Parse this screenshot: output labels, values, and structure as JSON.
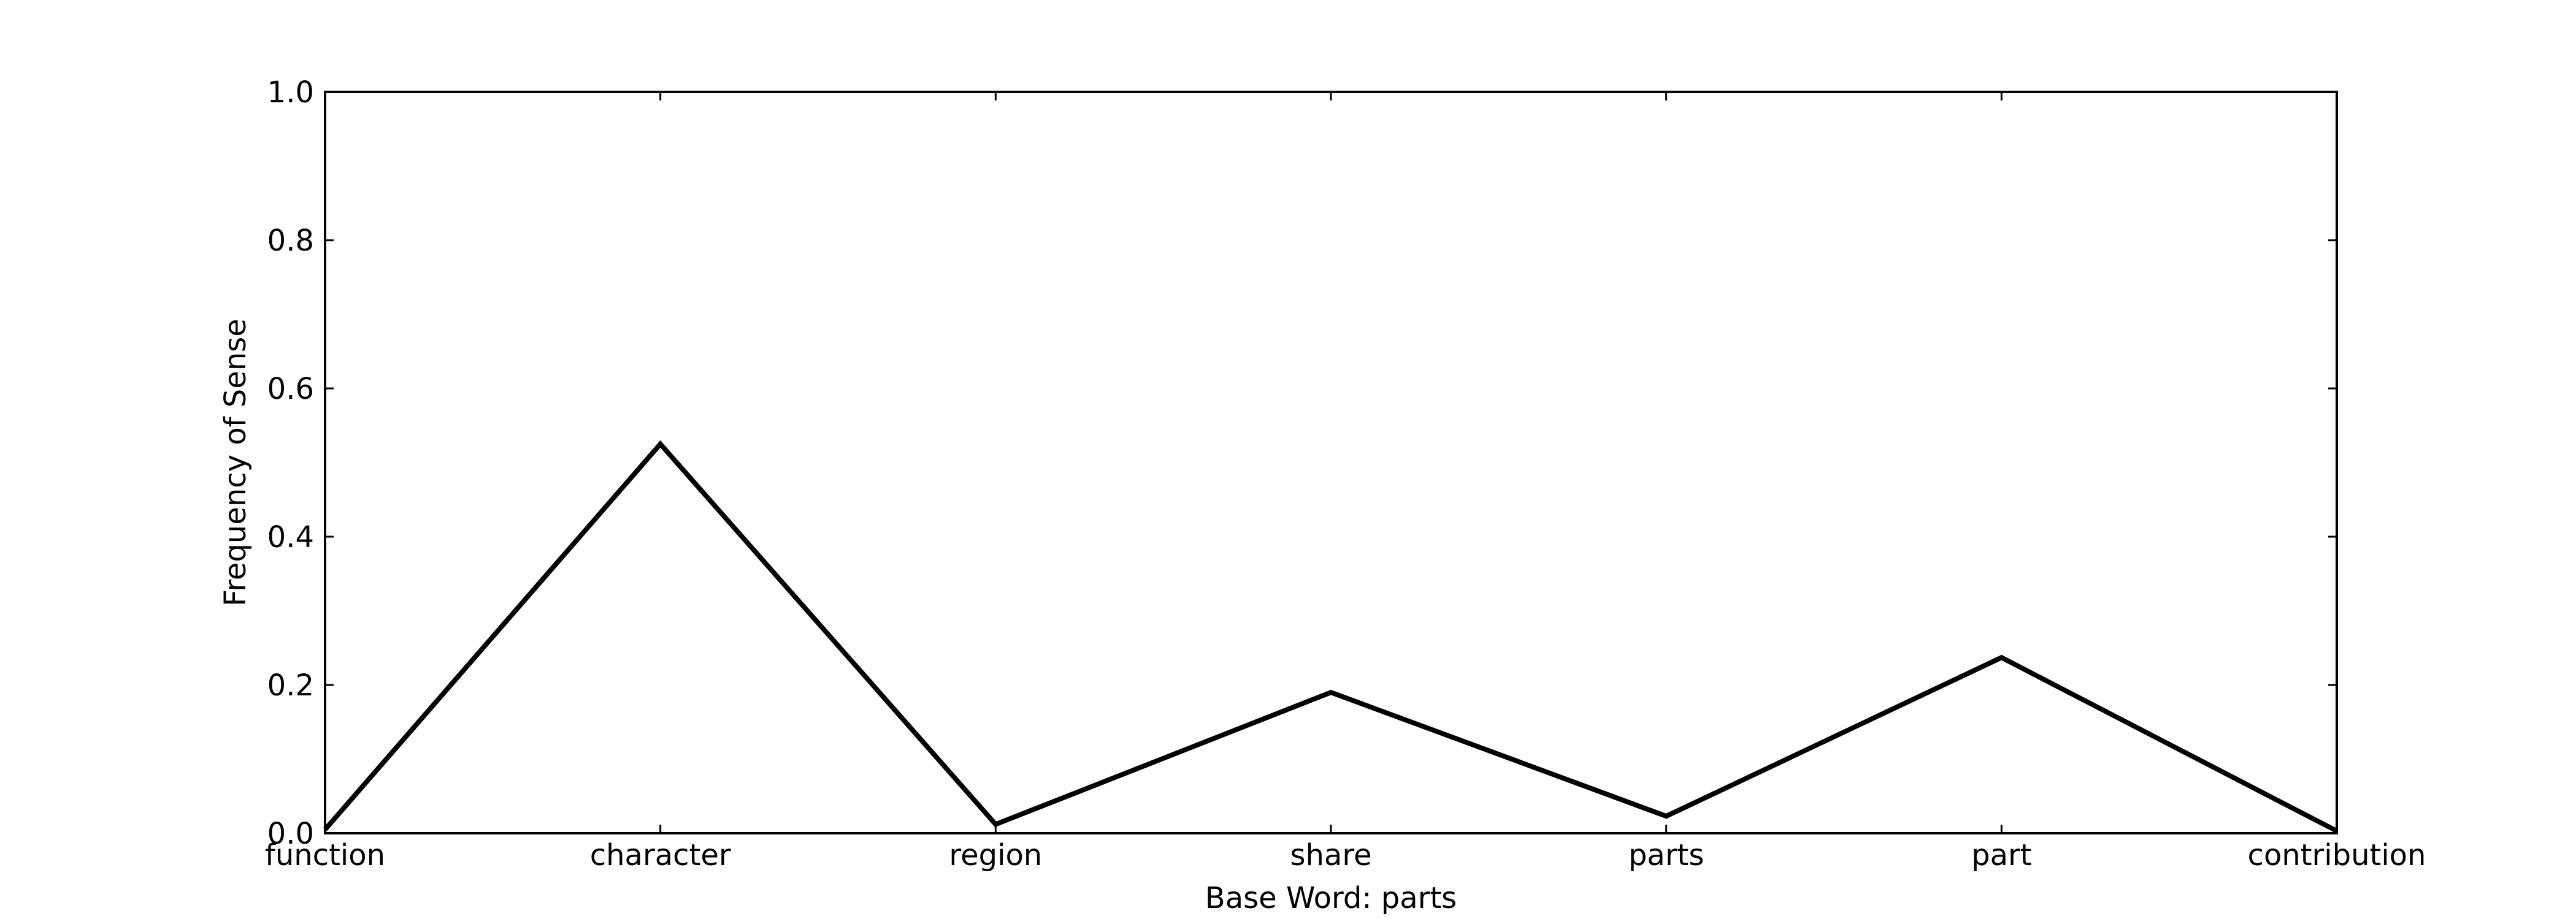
{
  "chart_data": {
    "type": "line",
    "xlabel": "Base Word: parts",
    "ylabel": "Frequency of Sense",
    "categories": [
      "function",
      "character",
      "region",
      "share",
      "parts",
      "part",
      "contribution"
    ],
    "values": [
      0.005,
      0.525,
      0.012,
      0.19,
      0.023,
      0.237,
      0.003
    ],
    "ylim": [
      0,
      1.0
    ],
    "yticks": [
      "0.0",
      "0.2",
      "0.4",
      "0.6",
      "0.8",
      "1.0"
    ],
    "grid": false,
    "line_color": "#000000"
  }
}
